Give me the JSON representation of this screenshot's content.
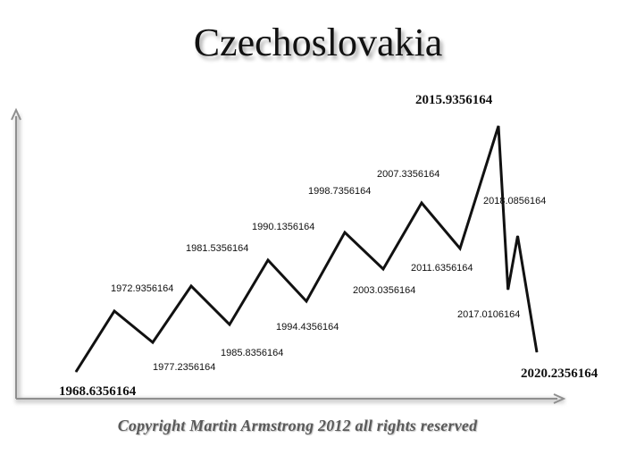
{
  "chart_data": {
    "type": "line",
    "title": "Czechoslovakia",
    "xlabel": "",
    "ylabel": "",
    "grid": false,
    "points": [
      {
        "label": "1968.6356164",
        "kind": "low"
      },
      {
        "label": "1972.9356164",
        "kind": "high"
      },
      {
        "label": "1977.2356164",
        "kind": "low"
      },
      {
        "label": "1981.5356164",
        "kind": "high"
      },
      {
        "label": "1985.8356164",
        "kind": "low"
      },
      {
        "label": "1990.1356164",
        "kind": "high"
      },
      {
        "label": "1994.4356164",
        "kind": "low"
      },
      {
        "label": "1998.7356164",
        "kind": "high"
      },
      {
        "label": "2003.0356164",
        "kind": "low"
      },
      {
        "label": "2007.3356164",
        "kind": "high"
      },
      {
        "label": "2011.6356164",
        "kind": "low"
      },
      {
        "label": "2015.9356164",
        "kind": "high"
      },
      {
        "label": "2017.0106164",
        "kind": "low"
      },
      {
        "label": "2018.0856164",
        "kind": "high"
      },
      {
        "label": "2020.2356164",
        "kind": "low"
      }
    ]
  },
  "footer": {
    "copyright": "Copyright Martin Armstrong 2012 all rights reserved"
  },
  "colors": {
    "line": "#111111",
    "axis": "#9a9a9a"
  }
}
